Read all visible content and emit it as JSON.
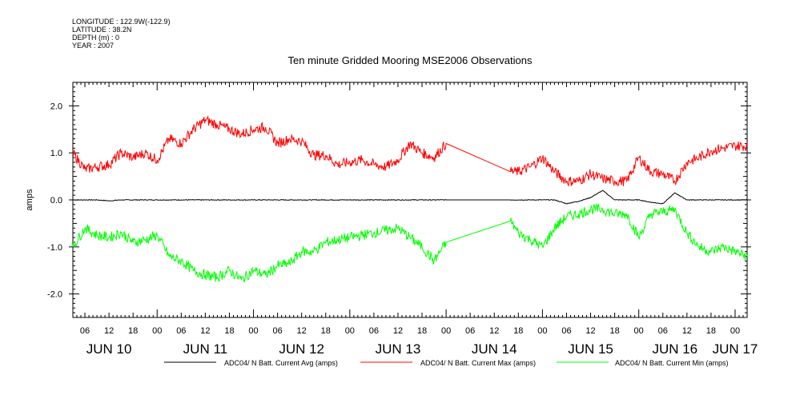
{
  "header": {
    "longitude": "LONGITUDE : 122.9W(-122.9)",
    "latitude": "LATITUDE : 38.2N",
    "depth": "DEPTH (m) : 0",
    "year": "YEAR : 2007"
  },
  "chart_data": {
    "type": "line",
    "title": "Ten minute Gridded Mooring MSE2006 Observations",
    "ylabel": "amps",
    "xlabel": "",
    "ylim": [
      -2.5,
      2.5
    ],
    "yticks": [
      2.0,
      1.0,
      0.0,
      -1.0,
      -2.0
    ],
    "ytick_labels": [
      "2.0",
      "1.0",
      "0.0",
      "-1.0",
      "-2.0"
    ],
    "x_units": "hours since JUN 10 03:00",
    "xlim": [
      0,
      168
    ],
    "hour_tick_labels": [
      "06",
      "12",
      "18",
      "00",
      "06",
      "12",
      "18",
      "00",
      "06",
      "12",
      "18",
      "00",
      "06",
      "12",
      "18",
      "00",
      "06",
      "12",
      "18",
      "00",
      "06",
      "12",
      "18",
      "00",
      "06",
      "12",
      "18",
      "00"
    ],
    "day_labels": [
      "JUN 10",
      "JUN 11",
      "JUN 12",
      "JUN 13",
      "JUN 14",
      "JUN 15",
      "JUN 16",
      "JUN 17"
    ],
    "grid": false,
    "legend_placement": "bottom",
    "x": [
      0,
      3,
      6,
      9,
      12,
      15,
      18,
      21,
      24,
      27,
      30,
      33,
      36,
      39,
      42,
      45,
      48,
      51,
      54,
      57,
      60,
      63,
      66,
      69,
      72,
      75,
      78,
      81,
      84,
      87,
      90,
      93,
      109,
      111,
      114,
      117,
      120,
      123,
      126,
      129,
      132,
      135,
      138,
      141,
      144,
      147,
      150,
      153,
      156,
      159,
      162,
      165,
      168
    ],
    "series": [
      {
        "name": "ADC04/ N Batt. Current Avg (amps)",
        "color": "#000000",
        "values": [
          0,
          0,
          0,
          -0.02,
          0,
          0,
          0,
          0,
          0,
          0,
          0,
          0,
          0,
          0,
          0,
          0,
          0,
          0,
          0,
          0,
          0,
          0,
          0,
          0,
          0,
          0,
          0,
          0,
          0,
          0,
          0,
          0,
          0,
          0,
          0,
          0,
          0,
          -0.08,
          -0.03,
          0.05,
          0.2,
          0,
          0,
          0,
          -0.05,
          -0.08,
          0.15,
          0,
          0,
          0,
          0,
          0,
          0
        ]
      },
      {
        "name": "ADC04/ N Batt. Current Max (amps)",
        "color": "#ff0000",
        "values": [
          1.0,
          0.65,
          0.7,
          0.75,
          1.0,
          0.9,
          1.0,
          0.85,
          1.3,
          1.2,
          1.5,
          1.7,
          1.6,
          1.5,
          1.4,
          1.5,
          1.55,
          1.2,
          1.3,
          1.25,
          0.95,
          0.95,
          0.75,
          0.8,
          0.85,
          0.75,
          0.7,
          0.85,
          1.2,
          1.0,
          0.9,
          1.2,
          0.6,
          0.6,
          0.7,
          0.9,
          0.6,
          0.4,
          0.4,
          0.55,
          0.45,
          0.4,
          0.4,
          0.9,
          0.6,
          0.55,
          0.4,
          0.8,
          0.9,
          1.05,
          1.1,
          1.15,
          1.15
        ]
      },
      {
        "name": "ADC04/ N Batt. Current Min (amps)",
        "color": "#00ff00",
        "values": [
          -1.0,
          -0.6,
          -0.75,
          -0.8,
          -0.7,
          -0.9,
          -0.85,
          -0.75,
          -1.2,
          -1.3,
          -1.5,
          -1.6,
          -1.65,
          -1.5,
          -1.7,
          -1.5,
          -1.6,
          -1.4,
          -1.35,
          -1.1,
          -1.1,
          -0.9,
          -0.85,
          -0.8,
          -0.75,
          -0.7,
          -0.65,
          -0.6,
          -0.8,
          -1.0,
          -1.3,
          -0.9,
          -0.45,
          -0.7,
          -0.85,
          -1.0,
          -0.6,
          -0.35,
          -0.3,
          -0.2,
          -0.2,
          -0.3,
          -0.3,
          -0.8,
          -0.3,
          -0.25,
          -0.2,
          -0.7,
          -1.0,
          -1.1,
          -1.0,
          -1.1,
          -1.2
        ]
      }
    ]
  }
}
